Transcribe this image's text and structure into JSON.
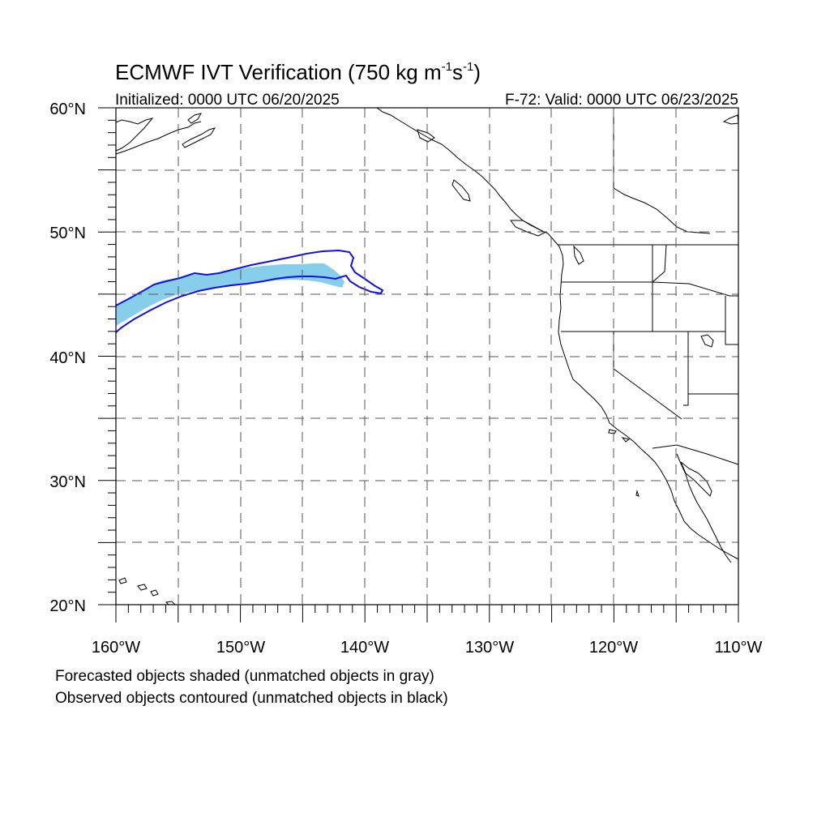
{
  "title": {
    "main_prefix": "ECMWF IVT Verification (750 kg m",
    "sup1": "-1",
    "mid": "s",
    "sup2": "-1",
    "suffix": ")"
  },
  "subtitle_left": "Initialized: 0000 UTC 06/20/2025",
  "subtitle_right": "F-72: Valid: 0000 UTC 06/23/2025",
  "lat_labels": [
    "60°N",
    "50°N",
    "40°N",
    "30°N",
    "20°N"
  ],
  "lon_labels": [
    "160°W",
    "150°W",
    "140°W",
    "130°W",
    "120°W",
    "110°W"
  ],
  "footnotes": {
    "line1": "Forecasted objects shaded (unmatched objects in gray)",
    "line2": "Observed objects contoured (unmatched objects in black)"
  },
  "colors": {
    "forecast_fill": "#87ceeb",
    "observed_contour": "#1010e0",
    "coastline": "#000000",
    "grid": "#555555"
  }
}
